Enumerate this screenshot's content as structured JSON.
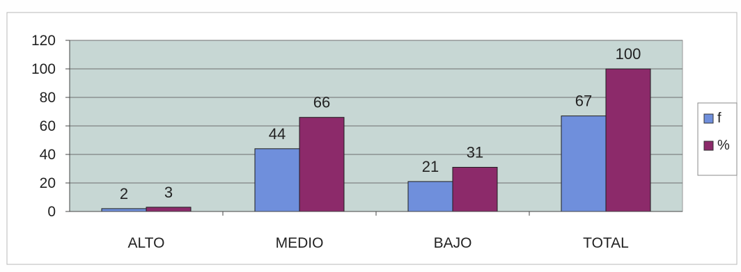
{
  "chart_data": {
    "type": "bar",
    "categories": [
      "ALTO",
      "MEDIO",
      "BAJO",
      "TOTAL"
    ],
    "series": [
      {
        "name": "f",
        "values": [
          2,
          44,
          21,
          67
        ],
        "labels": [
          "2",
          "44",
          "21",
          "67"
        ],
        "color": "#6f8fdc"
      },
      {
        "name": "%",
        "values": [
          3,
          66,
          31,
          100
        ],
        "labels": [
          "3",
          "66",
          "31",
          "100"
        ],
        "color": "#8c2a6a"
      }
    ],
    "ylim": [
      0,
      120
    ],
    "yticks": [
      0,
      20,
      40,
      60,
      80,
      100,
      120
    ],
    "ytick_labels": [
      "0",
      "20",
      "40",
      "60",
      "80",
      "100",
      "120"
    ],
    "grid": true,
    "legend_position": "right",
    "plot_background": "#c7d7d4",
    "title": "",
    "xlabel": "",
    "ylabel": ""
  }
}
